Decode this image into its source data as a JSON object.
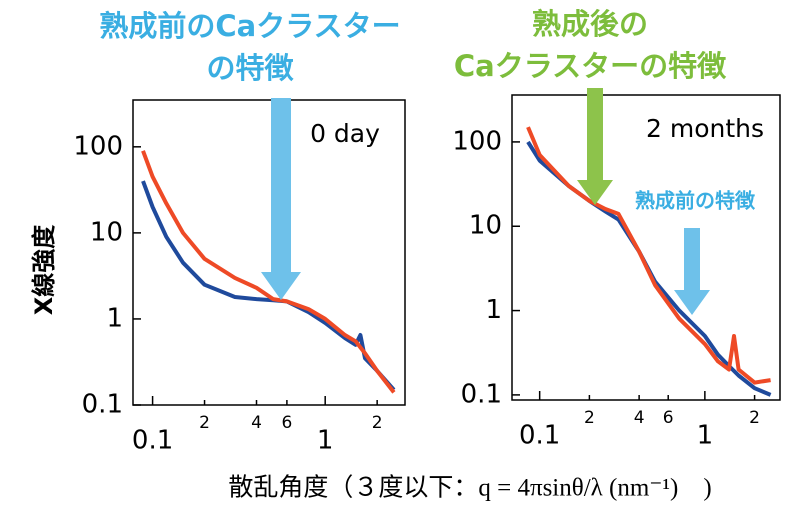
{
  "y_label": "X線強度",
  "x_label": "散乱角度（３度以下：q = 4πsinθ/λ (nm⁻¹)　)",
  "chart_data": [
    {
      "type": "line",
      "annotation": "0 day",
      "callout": [
        "熟成前のCaクラスター",
        "の特徴"
      ],
      "log_x": true,
      "log_y": true,
      "xlim": [
        0.077,
        2.9
      ],
      "ylim": [
        0.1,
        350
      ],
      "xticks": [
        0.1,
        {
          "value": 0.2,
          "label": "2"
        },
        {
          "value": 0.4,
          "label": "4"
        },
        {
          "value": 0.6,
          "label": "6"
        },
        1,
        {
          "value": 2,
          "label": "2"
        }
      ],
      "yticks": [
        0.1,
        1,
        10,
        100
      ],
      "series": [
        {
          "color": "#1f4a9c",
          "x": [
            0.088,
            0.1,
            0.12,
            0.15,
            0.2,
            0.3,
            0.4,
            0.5,
            0.6,
            0.8,
            1,
            1.3,
            1.5,
            1.6,
            1.7,
            2,
            2.5
          ],
          "values": [
            40,
            20,
            9,
            4.5,
            2.5,
            1.8,
            1.7,
            1.65,
            1.6,
            1.2,
            0.9,
            0.6,
            0.5,
            0.65,
            0.35,
            0.25,
            0.15
          ]
        },
        {
          "color": "#ee4a26",
          "x": [
            0.088,
            0.1,
            0.12,
            0.15,
            0.2,
            0.3,
            0.4,
            0.5,
            0.6,
            0.8,
            1,
            1.3,
            1.5,
            1.7,
            2,
            2.5
          ],
          "values": [
            90,
            45,
            22,
            10,
            5,
            3,
            2.3,
            1.7,
            1.6,
            1.3,
            1,
            0.65,
            0.55,
            0.4,
            0.25,
            0.14
          ]
        }
      ]
    },
    {
      "type": "line",
      "annotation": "2 months",
      "callout": [
        "熟成後の",
        "Caクラスターの特徴"
      ],
      "callout2": "熟成前の特徴",
      "log_x": true,
      "log_y": true,
      "xlim": [
        0.068,
        2.85
      ],
      "ylim": [
        0.087,
        360
      ],
      "xticks": [
        0.1,
        {
          "value": 0.2,
          "label": "2"
        },
        {
          "value": 0.4,
          "label": "4"
        },
        {
          "value": 0.6,
          "label": "6"
        },
        1,
        {
          "value": 2,
          "label": "2"
        }
      ],
      "yticks": [
        0.1,
        1,
        10,
        100
      ],
      "series": [
        {
          "color": "#1f4a9c",
          "x": [
            0.085,
            0.1,
            0.15,
            0.2,
            0.25,
            0.3,
            0.4,
            0.5,
            0.7,
            1,
            1.2,
            1.4,
            1.6,
            2,
            2.5
          ],
          "values": [
            100,
            60,
            30,
            20,
            15,
            12,
            5,
            2.2,
            1,
            0.5,
            0.3,
            0.22,
            0.17,
            0.12,
            0.1
          ]
        },
        {
          "color": "#ee4a26",
          "x": [
            0.085,
            0.1,
            0.15,
            0.2,
            0.25,
            0.3,
            0.4,
            0.5,
            0.7,
            1,
            1.2,
            1.4,
            1.5,
            1.6,
            2,
            2.5
          ],
          "values": [
            150,
            70,
            30,
            20,
            16,
            14,
            5,
            2,
            0.8,
            0.4,
            0.25,
            0.2,
            0.5,
            0.2,
            0.14,
            0.15
          ]
        }
      ]
    }
  ]
}
